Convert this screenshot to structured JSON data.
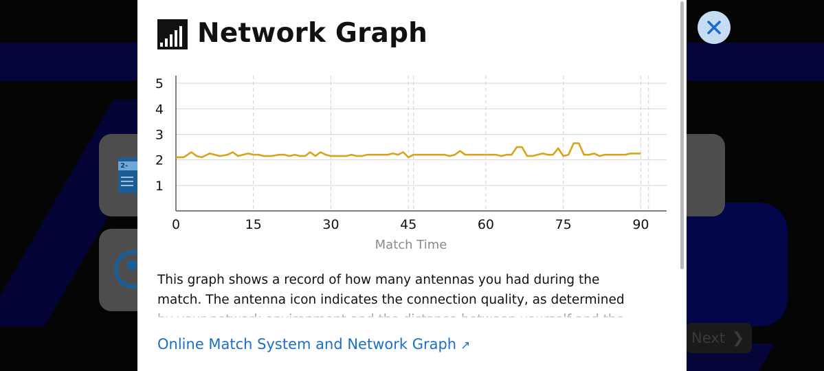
{
  "modal": {
    "title": "Network Graph",
    "icon": "signal-bars-icon",
    "description": "This graph shows a record of how many antennas you had during the match. The antenna icon indicates the connection quality, as determined by your network environment and the distance between yourself and the servers or your opponent.",
    "link_label": "Online Match System and Network Graph",
    "link_icon": "external-arrow-icon"
  },
  "close_button": {
    "icon": "close-icon",
    "color": "#1b6fc8"
  },
  "background": {
    "next_label": "Next",
    "next_icon": "chevron-right-icon",
    "card_icons": [
      "calendar-2-icon",
      "profile-icon"
    ]
  },
  "chart_data": {
    "type": "line",
    "title": "",
    "xlabel": "Match Time",
    "ylabel": "",
    "xlim": [
      0,
      95
    ],
    "ylim": [
      0,
      5.3
    ],
    "x_ticks": [
      0,
      15,
      30,
      45,
      60,
      75,
      90
    ],
    "y_ticks": [
      1,
      2,
      3,
      4,
      5
    ],
    "grid": true,
    "color": "#d9a21b",
    "x": [
      0,
      1.5,
      3,
      4,
      5,
      6.5,
      7.5,
      8.5,
      10,
      11,
      12,
      13,
      14,
      15,
      16,
      17,
      18.5,
      20,
      21,
      22,
      23,
      24,
      25,
      26,
      27,
      28,
      29,
      30,
      31,
      32,
      33,
      34,
      35,
      36,
      37,
      38,
      39,
      40,
      41,
      42,
      43,
      44,
      45,
      46,
      47,
      48,
      49,
      50,
      51,
      52,
      53,
      54,
      55,
      56,
      57,
      58,
      59,
      60,
      61,
      62,
      63,
      64,
      65,
      66,
      67,
      68,
      69,
      70,
      71,
      72,
      73,
      74,
      75,
      76,
      77,
      78,
      79,
      80,
      81,
      82,
      83,
      84,
      85,
      86,
      87,
      88,
      89,
      90
    ],
    "y": [
      2.1,
      2.1,
      2.3,
      2.15,
      2.1,
      2.25,
      2.2,
      2.15,
      2.2,
      2.3,
      2.15,
      2.2,
      2.25,
      2.2,
      2.2,
      2.15,
      2.15,
      2.2,
      2.2,
      2.15,
      2.2,
      2.15,
      2.15,
      2.3,
      2.15,
      2.3,
      2.2,
      2.15,
      2.15,
      2.15,
      2.15,
      2.2,
      2.15,
      2.15,
      2.2,
      2.2,
      2.2,
      2.2,
      2.2,
      2.25,
      2.2,
      2.3,
      2.1,
      2.2,
      2.2,
      2.2,
      2.2,
      2.2,
      2.2,
      2.2,
      2.15,
      2.2,
      2.35,
      2.2,
      2.2,
      2.2,
      2.2,
      2.2,
      2.2,
      2.2,
      2.15,
      2.2,
      2.2,
      2.5,
      2.5,
      2.15,
      2.15,
      2.2,
      2.25,
      2.2,
      2.2,
      2.45,
      2.15,
      2.2,
      2.65,
      2.65,
      2.2,
      2.2,
      2.25,
      2.15,
      2.2,
      2.2,
      2.2,
      2.2,
      2.2,
      2.25,
      2.25,
      2.25
    ]
  }
}
